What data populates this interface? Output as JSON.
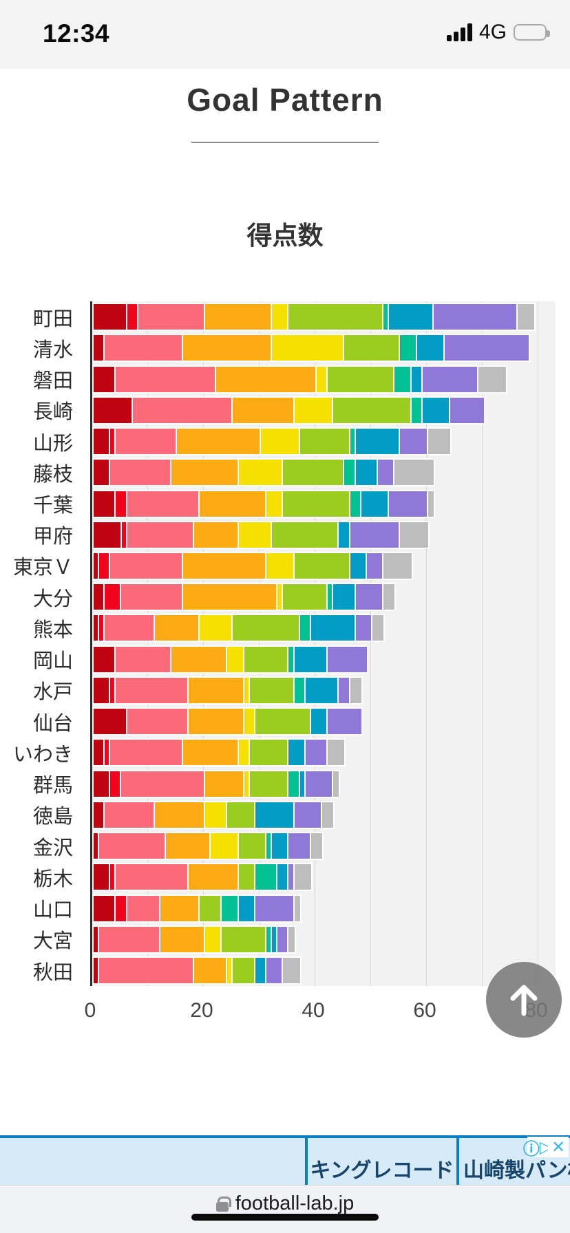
{
  "status_bar": {
    "time": "12:34",
    "network": "4G"
  },
  "header": {
    "title": "Goal Pattern"
  },
  "chart_data": {
    "type": "bar",
    "orientation": "horizontal",
    "stacked": true,
    "title": "得点数",
    "xlabel": "",
    "ylabel": "",
    "x_ticks": [
      0,
      20,
      40,
      60,
      80
    ],
    "xlim": [
      0,
      83
    ],
    "grid": "vertical, every 10",
    "segment_keys": [
      "dark-red",
      "red",
      "pink",
      "orange",
      "yellow",
      "yellow-green",
      "teal",
      "blue",
      "purple",
      "gray"
    ],
    "segment_colors": [
      "#bf0411",
      "#f2031c",
      "#fa6a78",
      "#fcab12",
      "#f6e000",
      "#9bcd20",
      "#03c193",
      "#029cc4",
      "#9078d8",
      "#bdbdbd"
    ],
    "teams": [
      {
        "name": "町田",
        "values": [
          6,
          2,
          12,
          12,
          3,
          17,
          1,
          8,
          15,
          3
        ]
      },
      {
        "name": "清水",
        "values": [
          2,
          0,
          14,
          16,
          13,
          10,
          3,
          5,
          15,
          0
        ]
      },
      {
        "name": "磐田",
        "values": [
          4,
          0,
          18,
          18,
          2,
          12,
          3,
          2,
          10,
          5
        ]
      },
      {
        "name": "長崎",
        "values": [
          7,
          0,
          18,
          11,
          7,
          14,
          2,
          5,
          6,
          0
        ]
      },
      {
        "name": "山形",
        "values": [
          3,
          1,
          11,
          15,
          7,
          9,
          1,
          8,
          5,
          4
        ]
      },
      {
        "name": "藤枝",
        "values": [
          3,
          0,
          11,
          12,
          8,
          11,
          2,
          4,
          3,
          7
        ]
      },
      {
        "name": "千葉",
        "values": [
          4,
          2,
          13,
          12,
          3,
          12,
          2,
          5,
          7,
          1
        ]
      },
      {
        "name": "甲府",
        "values": [
          5,
          1,
          12,
          8,
          6,
          12,
          0,
          2,
          9,
          5
        ]
      },
      {
        "name": "東京Ｖ",
        "values": [
          1,
          2,
          13,
          15,
          5,
          10,
          0,
          3,
          3,
          5
        ]
      },
      {
        "name": "大分",
        "values": [
          2,
          3,
          11,
          17,
          1,
          8,
          1,
          4,
          5,
          2
        ]
      },
      {
        "name": "熊本",
        "values": [
          1,
          1,
          9,
          8,
          6,
          12,
          2,
          8,
          3,
          2
        ]
      },
      {
        "name": "岡山",
        "values": [
          4,
          0,
          10,
          10,
          3,
          8,
          1,
          6,
          7,
          0
        ]
      },
      {
        "name": "水戸",
        "values": [
          3,
          1,
          13,
          10,
          1,
          8,
          2,
          6,
          2,
          2
        ]
      },
      {
        "name": "仙台",
        "values": [
          6,
          0,
          11,
          10,
          2,
          10,
          0,
          3,
          6,
          0
        ]
      },
      {
        "name": "いわき",
        "values": [
          2,
          1,
          13,
          10,
          2,
          7,
          0,
          3,
          4,
          3
        ]
      },
      {
        "name": "群馬",
        "values": [
          3,
          2,
          15,
          7,
          1,
          7,
          2,
          1,
          5,
          1
        ]
      },
      {
        "name": "徳島",
        "values": [
          2,
          0,
          9,
          9,
          4,
          5,
          0,
          7,
          5,
          2
        ]
      },
      {
        "name": "金沢",
        "values": [
          1,
          0,
          12,
          8,
          5,
          5,
          1,
          3,
          4,
          2
        ]
      },
      {
        "name": "栃木",
        "values": [
          3,
          1,
          13,
          9,
          0,
          3,
          4,
          2,
          1,
          3
        ]
      },
      {
        "name": "山口",
        "values": [
          4,
          2,
          6,
          7,
          0,
          4,
          3,
          3,
          7,
          1
        ]
      },
      {
        "name": "大宮",
        "values": [
          1,
          0,
          11,
          8,
          3,
          8,
          1,
          1,
          2,
          1
        ]
      },
      {
        "name": "秋田",
        "values": [
          1,
          0,
          17,
          6,
          1,
          4,
          0,
          2,
          3,
          3
        ]
      }
    ]
  },
  "scroll_top_button": {
    "icon": "up-arrow"
  },
  "ad_banner": {
    "items": [
      "",
      "キングレコード",
      "山崎製パン株"
    ],
    "adchoices_glyph": "ⓘ",
    "close_glyph": "✕"
  },
  "browser_bar": {
    "url": "football-lab.jp"
  }
}
